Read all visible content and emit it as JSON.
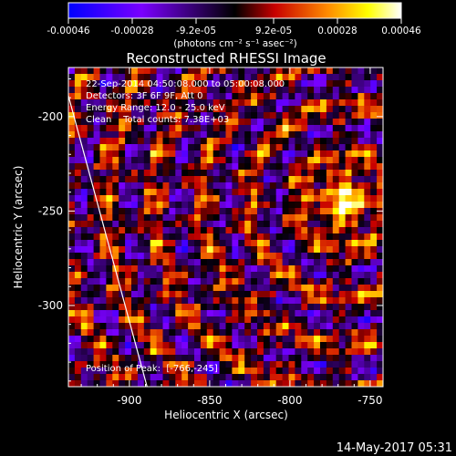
{
  "colorbar": {
    "ticks": [
      "-0.00046",
      "-0.00028",
      "-9.2e-05",
      "9.2e-05",
      "0.00028",
      "0.00046"
    ],
    "unit_label": "(photons cm⁻² s⁻¹ asec⁻²)",
    "colors": [
      "#0000ff",
      "#7a00ff",
      "#000000",
      "#c80000",
      "#ff8c00",
      "#ffff00",
      "#ffffff"
    ]
  },
  "annotations": {
    "line1": "22-Sep-2014 04:50:08.000 to 05:00:08.000",
    "line2": "Detectors: 3F 6F 9F, Att 0",
    "line3": "Energy Range: 12.0 - 25.0 keV",
    "line4": "Clean    Total counts: 7.38E+03",
    "peak": "Position of Peak:  [-766,-245]"
  },
  "footer_timestamp": "14-May-2017 05:31",
  "chart_data": {
    "type": "heatmap",
    "title": "Reconstructed RHESSI Image",
    "xlabel": "Heliocentric X (arcsec)",
    "ylabel": "Heliocentric Y (arcsec)",
    "xlim": [
      -938,
      -742
    ],
    "ylim": [
      -343,
      -174
    ],
    "xticks": [
      -900,
      -850,
      -800,
      -750
    ],
    "yticks": [
      -200,
      -250,
      -300
    ],
    "xtick_labels": [
      "-900",
      "-850",
      "-800",
      "-750"
    ],
    "ytick_labels": [
      "-200",
      "-250",
      "-300"
    ],
    "value_range": [
      -0.00046,
      0.00046
    ],
    "peak_position": [
      -766,
      -245
    ],
    "limb_line": [
      [
        -938,
        -189
      ],
      [
        -889,
        -343
      ]
    ]
  }
}
